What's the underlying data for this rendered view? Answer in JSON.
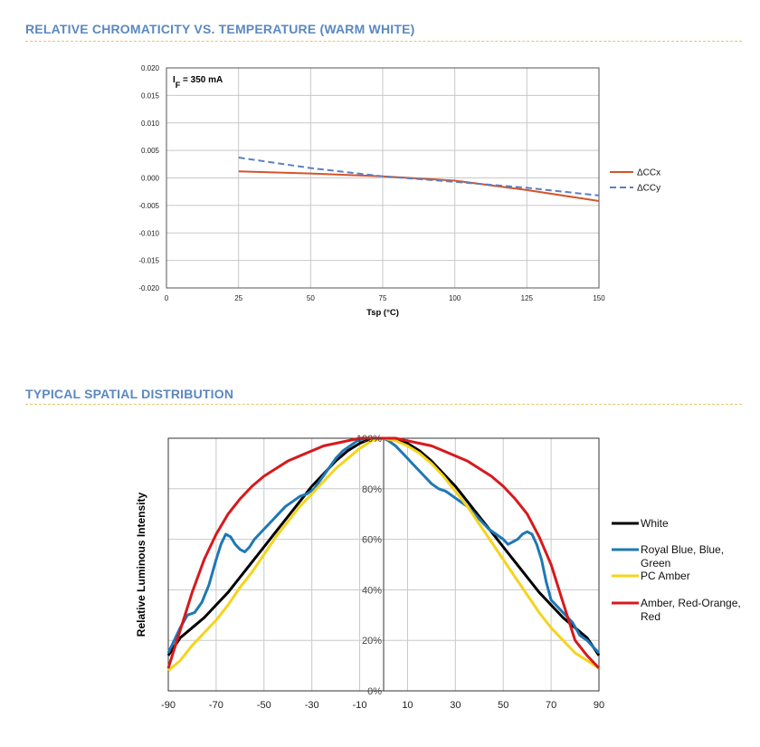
{
  "colors": {
    "section_title": "#5b88c0",
    "divider": "#e8c46a",
    "grid": "#c8c8c8"
  },
  "sections": {
    "chromaticity_title": "RELATIVE CHROMATICITY VS. TEMPERATURE (WARM WHITE)",
    "spatial_title": "TYPICAL SPATIAL DISTRIBUTION"
  },
  "chart_data": [
    {
      "type": "line",
      "title": "",
      "xlabel": "Tsp (°C)",
      "ylabel": "",
      "annotation": {
        "prefix": "I",
        "sub": "F",
        "text": " = 350 mA"
      },
      "xlim": [
        0,
        150
      ],
      "ylim": [
        -0.02,
        0.02
      ],
      "x_ticks": [
        0,
        25,
        50,
        75,
        100,
        125,
        150
      ],
      "x_tick_labels": [
        "0",
        "25",
        "50",
        "75",
        "100",
        "125",
        "150"
      ],
      "y_ticks": [
        0.02,
        0.015,
        0.01,
        0.005,
        0.0,
        -0.005,
        -0.01,
        -0.015,
        -0.02
      ],
      "y_tick_labels": [
        "0.020",
        "0.015",
        "0.010",
        "0.005",
        "0.000",
        "-0.005",
        "-0.010",
        "-0.015",
        "-0.020"
      ],
      "grid": true,
      "legend_position": "right",
      "series": [
        {
          "name": "ΔCCx",
          "color": "#d4542a",
          "dash": false,
          "x": [
            25,
            50,
            75,
            100,
            125,
            150
          ],
          "y": [
            0.0012,
            0.0008,
            0.0003,
            -0.0005,
            -0.0022,
            -0.0042
          ]
        },
        {
          "name": "ΔCCy",
          "color": "#5b7fc4",
          "dash": true,
          "x": [
            25,
            50,
            75,
            100,
            125,
            150
          ],
          "y": [
            0.0037,
            0.0018,
            0.0003,
            -0.0007,
            -0.0018,
            -0.0032
          ]
        }
      ]
    },
    {
      "type": "line",
      "title": "",
      "xlabel": "",
      "ylabel": "Relative Luminous Intensity",
      "xlim": [
        -90,
        90
      ],
      "ylim": [
        0,
        100
      ],
      "x_ticks": [
        -90,
        -70,
        -50,
        -30,
        -10,
        10,
        30,
        50,
        70,
        90
      ],
      "x_tick_labels": [
        "-90",
        "-70",
        "-50",
        "-30",
        "-10",
        "10",
        "30",
        "50",
        "70",
        "90"
      ],
      "y_ticks": [
        0,
        20,
        40,
        60,
        80,
        100
      ],
      "y_tick_labels": [
        "0%",
        "20%",
        "40%",
        "60%",
        "80%",
        "100%"
      ],
      "grid": true,
      "legend_position": "right",
      "series": [
        {
          "name": "White",
          "color": "#000000",
          "x": [
            -90,
            -85,
            -80,
            -75,
            -70,
            -65,
            -60,
            -55,
            -50,
            -45,
            -40,
            -35,
            -30,
            -25,
            -20,
            -15,
            -10,
            -5,
            0,
            5,
            10,
            15,
            20,
            25,
            30,
            35,
            40,
            45,
            50,
            55,
            60,
            65,
            70,
            75,
            80,
            85,
            90
          ],
          "y": [
            14,
            21,
            25,
            29,
            34,
            39,
            45,
            51,
            57,
            63,
            69,
            75,
            81,
            86,
            91,
            95,
            98,
            100,
            100,
            100,
            98,
            95,
            91,
            86,
            81,
            75,
            69,
            63,
            57,
            51,
            45,
            39,
            34,
            29,
            25,
            21,
            14
          ]
        },
        {
          "name": "Royal Blue, Blue, Green",
          "color": "#1f78b4",
          "x": [
            -90,
            -88,
            -85,
            -82,
            -79,
            -76,
            -73,
            -70,
            -68,
            -66,
            -64,
            -62,
            -60,
            -58,
            -56,
            -54,
            -52,
            -50,
            -47,
            -44,
            -41,
            -38,
            -35,
            -32,
            -29,
            -26,
            -23,
            -20,
            -17,
            -14,
            -11,
            -8,
            -5,
            -2,
            0,
            2,
            5,
            8,
            11,
            14,
            17,
            20,
            23,
            26,
            29,
            32,
            35,
            38,
            41,
            44,
            47,
            50,
            52,
            54,
            56,
            58,
            60,
            62,
            64,
            66,
            68,
            70,
            73,
            76,
            79,
            82,
            85,
            88,
            90
          ],
          "y": [
            15,
            19,
            25,
            30,
            31,
            35,
            42,
            52,
            58,
            62,
            61,
            58,
            56,
            55,
            57,
            60,
            62,
            64,
            67,
            70,
            73,
            75,
            77,
            78,
            80,
            84,
            88,
            92,
            95,
            97,
            99,
            100,
            100,
            100,
            100,
            99,
            97,
            94,
            91,
            88,
            85,
            82,
            80,
            79,
            77,
            75,
            73,
            70,
            67,
            64,
            62,
            60,
            58,
            59,
            60,
            62,
            63,
            62,
            58,
            52,
            43,
            36,
            33,
            30,
            27,
            22,
            20,
            17,
            15
          ]
        },
        {
          "name": "PC Amber",
          "color": "#f5d41d",
          "x": [
            -90,
            -85,
            -80,
            -75,
            -70,
            -65,
            -60,
            -55,
            -50,
            -45,
            -40,
            -35,
            -30,
            -25,
            -20,
            -15,
            -10,
            -5,
            0,
            5,
            10,
            15,
            20,
            25,
            30,
            35,
            40,
            45,
            50,
            55,
            60,
            65,
            70,
            75,
            80,
            85,
            90
          ],
          "y": [
            8,
            12,
            18,
            23,
            28,
            34,
            41,
            47,
            54,
            61,
            67,
            73,
            78,
            83,
            88,
            92,
            96,
            99,
            100,
            99,
            97,
            94,
            90,
            85,
            79,
            73,
            66,
            59,
            52,
            45,
            38,
            31,
            25,
            20,
            15,
            12,
            9
          ]
        },
        {
          "name": "Amber, Red-Orange, Red",
          "color": "#d7191c",
          "x": [
            -90,
            -85,
            -80,
            -75,
            -70,
            -65,
            -60,
            -55,
            -50,
            -45,
            -40,
            -35,
            -30,
            -25,
            -20,
            -15,
            -10,
            -5,
            0,
            5,
            10,
            15,
            20,
            25,
            30,
            35,
            40,
            45,
            50,
            55,
            60,
            65,
            70,
            75,
            80,
            85,
            90
          ],
          "y": [
            9,
            24,
            39,
            52,
            62,
            70,
            76,
            81,
            85,
            88,
            91,
            93,
            95,
            97,
            98,
            99,
            100,
            100,
            100,
            100,
            99,
            98,
            97,
            95,
            93,
            91,
            88,
            85,
            81,
            76,
            70,
            61,
            50,
            35,
            20,
            14,
            9
          ]
        }
      ]
    }
  ]
}
